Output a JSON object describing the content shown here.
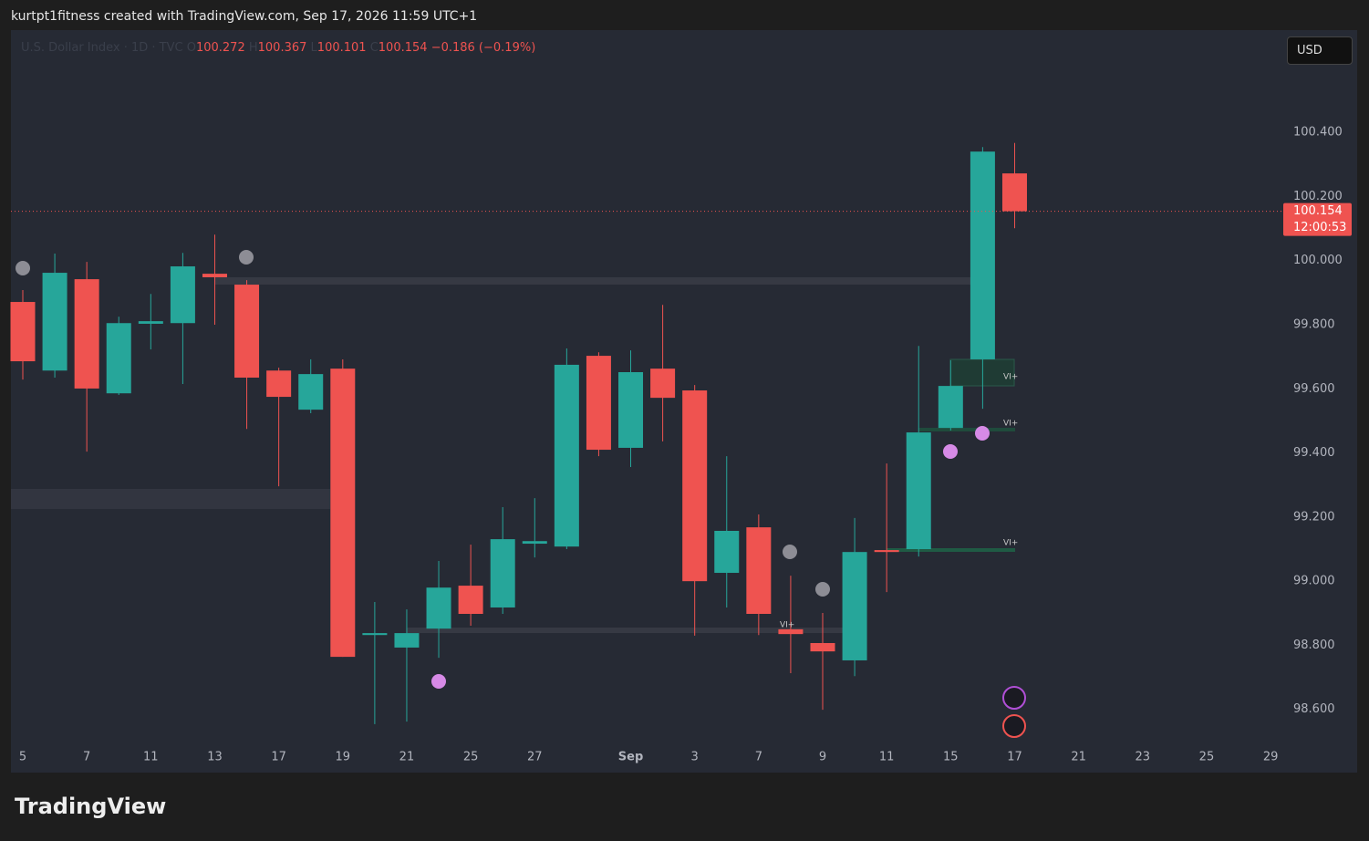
{
  "header": {
    "attribution": "kurtpt1fitness created with TradingView.com, Sep 17, 2026 11:59 UTC+1",
    "currency": "USD",
    "logo": "TradingView"
  },
  "chart_data": {
    "type": "candlestick",
    "title": "U.S. Dollar Index · 1D · TVC",
    "ohlc_labels": [
      "O",
      "H",
      "L",
      "C"
    ],
    "ohlc_values": [
      "100.272",
      "100.367",
      "100.101",
      "100.154"
    ],
    "change": "−0.186 (−0.19%)",
    "countdown": "12:00:53",
    "last_price_label": "100.154",
    "annotations": [
      "VI+",
      "VI+",
      "VI+",
      "VI+"
    ],
    "up_color": "#26a69a",
    "down_color": "#ef5350",
    "categories": [
      "5",
      null,
      "7",
      null,
      "11",
      null,
      "13",
      null,
      "17",
      null,
      "19",
      null,
      "21",
      null,
      "25",
      null,
      "27",
      null,
      null,
      "Sep",
      null,
      "3",
      null,
      "7",
      null,
      "9",
      null,
      "11",
      null,
      "15",
      null,
      "17",
      null,
      "21",
      null,
      "23",
      null,
      "25",
      null,
      "29"
    ],
    "open": [
      99.871,
      99.657,
      99.942,
      99.586,
      99.803,
      99.805,
      99.959,
      99.925,
      99.657,
      99.535,
      99.663,
      98.832,
      98.793,
      98.852,
      98.986,
      98.918,
      99.117,
      99.108,
      99.703,
      99.416,
      99.663,
      99.595,
      99.026,
      99.168,
      98.85,
      98.807,
      98.753,
      99.097,
      99.1,
      99.478,
      99.692,
      100.272,
      null,
      null,
      null,
      null,
      null,
      null,
      null,
      null
    ],
    "high": [
      99.908,
      100.022,
      99.996,
      99.825,
      99.896,
      100.024,
      100.081,
      99.939,
      99.666,
      99.692,
      99.692,
      98.935,
      98.912,
      99.063,
      99.114,
      99.231,
      99.259,
      99.726,
      99.714,
      99.72,
      99.862,
      99.612,
      99.39,
      99.208,
      99.017,
      98.901,
      99.197,
      99.367,
      99.734,
      99.689,
      100.354,
      100.367,
      null,
      null,
      null,
      null,
      null,
      null,
      null,
      null
    ],
    "low": [
      99.629,
      99.635,
      99.404,
      99.581,
      99.723,
      99.615,
      99.8,
      99.475,
      99.296,
      99.524,
      98.764,
      98.554,
      98.562,
      98.761,
      98.861,
      98.898,
      99.074,
      99.1,
      99.39,
      99.356,
      99.436,
      98.83,
      98.918,
      98.832,
      98.713,
      98.599,
      98.704,
      98.966,
      99.077,
      99.47,
      99.538,
      100.101,
      null,
      null,
      null,
      null,
      null,
      null,
      null,
      null
    ],
    "close": [
      99.686,
      99.962,
      99.601,
      99.805,
      99.811,
      99.982,
      99.948,
      99.635,
      99.575,
      99.646,
      98.764,
      98.838,
      98.838,
      98.98,
      98.898,
      99.131,
      99.125,
      99.675,
      99.41,
      99.652,
      99.572,
      99.0,
      99.157,
      98.898,
      98.835,
      98.781,
      99.091,
      99.091,
      99.464,
      99.609,
      100.34,
      100.154,
      null,
      null,
      null,
      null,
      null,
      null,
      null,
      null
    ],
    "ylim": [
      98.494,
      100.719
    ],
    "yticks": [
      {
        "value": 98.6,
        "label": "98.600"
      },
      {
        "value": 98.8,
        "label": "98.800"
      },
      {
        "value": 99.0,
        "label": "99.000"
      },
      {
        "value": 99.2,
        "label": "99.200"
      },
      {
        "value": 99.4,
        "label": "99.400"
      },
      {
        "value": 99.6,
        "label": "99.600"
      },
      {
        "value": 99.8,
        "label": "99.800"
      },
      {
        "value": 100.0,
        "label": "100.000"
      },
      {
        "value": 100.2,
        "label": "100.200"
      },
      {
        "value": 100.4,
        "label": "100.400"
      }
    ],
    "grid": false
  }
}
